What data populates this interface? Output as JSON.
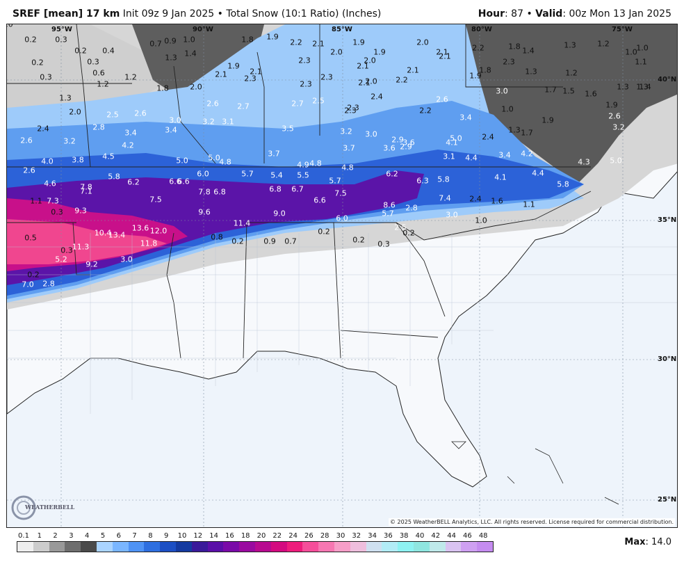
{
  "header": {
    "model": "SREF [mean] 17 km",
    "init": "Init 09z 9 Jan 2025",
    "sep": "•",
    "product": "Total Snow (10:1 Ratio) (Inches)",
    "hour_label": "Hour",
    "hour_value": ": 87",
    "valid_label": "Valid",
    "valid_value": ": 00z Mon 13 Jan 2025"
  },
  "map": {
    "lon_labels": [
      "95°W",
      "90°W",
      "85°W",
      "80°W",
      "75°W"
    ],
    "lat_labels": [
      "40°N",
      "35°N",
      "30°N",
      "25°N"
    ],
    "copyright": "© 2025 WeatherBELL Analytics, LLC. All rights reserved. License required for commercial distribution.",
    "logo_text": "WEATHERBELL",
    "values": [
      "0.2",
      "0.3",
      "0.2",
      "0.4",
      "0.2",
      "0.3",
      "0.6",
      "0.3",
      "1.2",
      "0.7",
      "0.9",
      "1.0",
      "1.3",
      "1.4",
      "1.8",
      "1.9",
      "2.2",
      "2.1",
      "1.9",
      "1.9",
      "2.0",
      "2.1",
      "2.1",
      "2.2",
      "1.8",
      "1.4",
      "1.3",
      "1.2",
      "1.0",
      "1.0",
      "1.1",
      "1.3",
      "1.2",
      "1.8",
      "2.1",
      "1.9",
      "2.1",
      "2.3",
      "2.3",
      "2.0",
      "2.1",
      "2.0",
      "2.1",
      "2.2",
      "2.3",
      "1.9",
      "1.8",
      "2.3",
      "1.3",
      "1.2",
      "1.3",
      "2.0",
      "2.3",
      "2.1",
      "2.0",
      "2.4",
      "1.4",
      "1.3",
      "1.5",
      "1.7",
      "1.6",
      "3.0",
      "1.0",
      "1.3",
      "1.7",
      "1.9",
      "2.6",
      "1.9",
      "3.2",
      "2.0",
      "2.5",
      "2.6",
      "2.6",
      "2.7",
      "2.7",
      "2.5",
      "2.3",
      "2.3",
      "2.2",
      "2.6",
      "3.4",
      "2.4",
      "2.8",
      "3.0",
      "3.2",
      "3.1",
      "3.4",
      "3.4",
      "3.5",
      "3.2",
      "3.0",
      "2.9",
      "2.9",
      "4.1",
      "2.4",
      "2.6",
      "3.2",
      "4.2",
      "3.7",
      "3.6",
      "3.6",
      "3.1",
      "4.4",
      "3.4",
      "4.2",
      "3.7",
      "4.3",
      "5.0",
      "2.6",
      "4.0",
      "3.8",
      "4.5",
      "5.0",
      "5.0",
      "4.8",
      "4.9",
      "4.8",
      "4.8",
      "5.0",
      "4.1",
      "4.4",
      "4.6",
      "5.8",
      "6.2",
      "6.6",
      "6.6",
      "6.0",
      "5.7",
      "5.4",
      "5.5",
      "5.7",
      "6.2",
      "6.3",
      "5.8",
      "5.8",
      "1.1",
      "7.3",
      "7.8",
      "7.1",
      "7.5",
      "7.8",
      "6.8",
      "6.8",
      "6.7",
      "6.6",
      "7.5",
      "7.4",
      "2.4",
      "1.6",
      "1.1",
      "0.3",
      "9.3",
      "9.6",
      "9.0",
      "8.6",
      "5.7",
      "2.8",
      "3.0",
      "1.0",
      "0.5",
      "10.4",
      "13.4",
      "13.6",
      "12.0",
      "11.4",
      "6.0",
      "2.5",
      "0.8",
      "0.2",
      "0.2",
      "0.2",
      "0.9",
      "0.7",
      "0.2",
      "0.3",
      "0.3",
      "11.3",
      "11.8",
      "5.2",
      "9.2",
      "3.0",
      "0.2",
      "7.0",
      "2.8",
      "1.0"
    ]
  },
  "legend": {
    "ticks": [
      "0.1",
      "1",
      "2",
      "3",
      "4",
      "5",
      "6",
      "7",
      "8",
      "9",
      "10",
      "12",
      "14",
      "16",
      "18",
      "20",
      "22",
      "24",
      "26",
      "28",
      "30",
      "32",
      "34",
      "36",
      "38",
      "40",
      "42",
      "44",
      "46",
      "48"
    ],
    "colors": [
      "#eeeeee",
      "#cccccc",
      "#999999",
      "#6e6e6e",
      "#4a4a4a",
      "#aad4ff",
      "#7ab6ff",
      "#4f93f5",
      "#2e6fe0",
      "#1c4fc4",
      "#143aa0",
      "#3a1a9a",
      "#5a0fa8",
      "#7a0aa8",
      "#9a0aa0",
      "#b80a90",
      "#d40a80",
      "#ee1c7c",
      "#f54e9a",
      "#f777b2",
      "#f79ec8",
      "#eebedd",
      "#cfe0f0",
      "#b2ecf6",
      "#8ef2f2",
      "#8fe6e0",
      "#bfe9ea",
      "#d9c3f1",
      "#cfa0f2",
      "#c58cf0"
    ],
    "max_label": "Max",
    "max_value": ": 14.0"
  }
}
